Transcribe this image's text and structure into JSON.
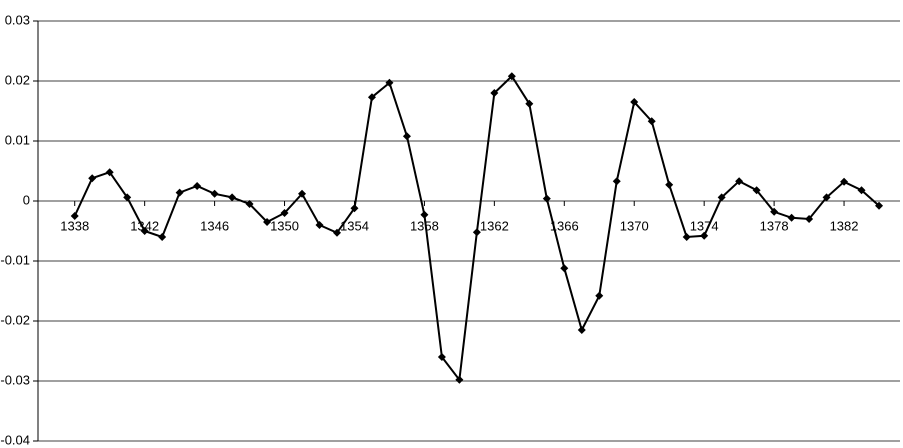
{
  "chart_data": {
    "type": "line",
    "x": [
      1338,
      1339,
      1340,
      1341,
      1342,
      1343,
      1344,
      1345,
      1346,
      1347,
      1348,
      1349,
      1350,
      1351,
      1352,
      1353,
      1354,
      1355,
      1356,
      1357,
      1358,
      1359,
      1360,
      1361,
      1362,
      1363,
      1364,
      1365,
      1366,
      1367,
      1368,
      1369,
      1370,
      1371,
      1372,
      1373,
      1374,
      1375,
      1376,
      1377,
      1378,
      1379,
      1380,
      1381,
      1382,
      1383,
      1384
    ],
    "series": [
      {
        "color": "#000000",
        "values": [
          -0.0025,
          0.0038,
          0.0048,
          0.0006,
          -0.005,
          -0.006,
          0.0014,
          0.0025,
          0.0012,
          0.0006,
          -0.0005,
          -0.0035,
          -0.002,
          0.0012,
          -0.004,
          -0.0053,
          -0.0012,
          0.0173,
          0.0197,
          0.0108,
          -0.0023,
          -0.026,
          -0.0298,
          -0.0052,
          0.018,
          0.0208,
          0.0162,
          0.0004,
          -0.0112,
          -0.0215,
          -0.0158,
          0.0033,
          0.0165,
          0.0133,
          0.0027,
          -0.006,
          -0.0058,
          0.0006,
          0.0033,
          0.0018,
          -0.0018,
          -0.0028,
          -0.003,
          0.0006,
          0.0032,
          0.0018,
          -0.0008
        ]
      }
    ],
    "xlim": [
      1335.9,
      1385.2
    ],
    "xticks": [
      1338,
      1342,
      1346,
      1350,
      1354,
      1358,
      1362,
      1366,
      1370,
      1374,
      1378,
      1382
    ],
    "ylim": [
      -0.04,
      0.03
    ],
    "yticks": [
      -0.04,
      -0.03,
      -0.02,
      -0.01,
      0,
      0.01,
      0.02,
      0.03
    ],
    "grid": true
  }
}
